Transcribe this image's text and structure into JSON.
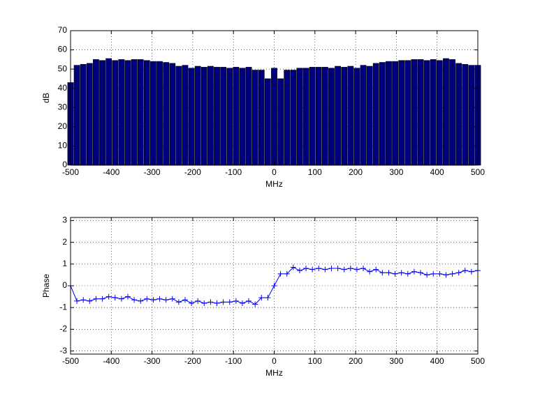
{
  "chart_data": [
    {
      "type": "bar",
      "xlabel": "MHz",
      "ylabel": "dB",
      "color": "#00007f",
      "edgecolor": "#000000",
      "grid": true,
      "x": [
        -500,
        -484.375,
        -468.75,
        -453.125,
        -437.5,
        -421.875,
        -406.25,
        -390.625,
        -375,
        -359.375,
        -343.75,
        -328.125,
        -312.5,
        -296.875,
        -281.25,
        -265.625,
        -250,
        -234.375,
        -218.75,
        -203.125,
        -187.5,
        -171.875,
        -156.25,
        -140.625,
        -125,
        -109.375,
        -93.75,
        -78.125,
        -62.5,
        -46.875,
        -31.25,
        -15.625,
        0,
        15.625,
        31.25,
        46.875,
        62.5,
        78.125,
        93.75,
        109.375,
        125,
        140.625,
        156.25,
        171.875,
        187.5,
        203.125,
        218.75,
        234.375,
        250,
        265.625,
        281.25,
        296.875,
        312.5,
        328.125,
        343.75,
        359.375,
        375,
        390.625,
        406.25,
        421.875,
        437.5,
        453.125,
        468.75,
        484.375,
        500
      ],
      "values": [
        43,
        52,
        52.5,
        53,
        55,
        54.5,
        55.5,
        54.5,
        55,
        54.5,
        55,
        55,
        54.5,
        54,
        54,
        53.5,
        53,
        51.5,
        52,
        50.5,
        51.5,
        51,
        51.5,
        51,
        51,
        50.5,
        51,
        50.5,
        51,
        49.5,
        49.5,
        45,
        50.5,
        45,
        49.5,
        49.5,
        50.5,
        50.5,
        51,
        51,
        51,
        50.5,
        51.5,
        51,
        51.5,
        50.5,
        52,
        51.5,
        53,
        53.5,
        54,
        54,
        54.5,
        54.5,
        55,
        55,
        54.5,
        55,
        54.5,
        55.5,
        55,
        53,
        52.5,
        52,
        52
      ],
      "xlim": [
        -500,
        500
      ],
      "xticks": [
        -500,
        -400,
        -300,
        -200,
        -100,
        0,
        100,
        200,
        300,
        400,
        500
      ],
      "ylim": [
        0,
        70
      ],
      "yticks": [
        0,
        10,
        20,
        30,
        40,
        50,
        60,
        70
      ]
    },
    {
      "type": "line",
      "xlabel": "MHz",
      "ylabel": "Phase",
      "color": "#0000ff",
      "marker": "+",
      "grid": true,
      "x": [
        -500,
        -484.375,
        -468.75,
        -453.125,
        -437.5,
        -421.875,
        -406.25,
        -390.625,
        -375,
        -359.375,
        -343.75,
        -328.125,
        -312.5,
        -296.875,
        -281.25,
        -265.625,
        -250,
        -234.375,
        -218.75,
        -203.125,
        -187.5,
        -171.875,
        -156.25,
        -140.625,
        -125,
        -109.375,
        -93.75,
        -78.125,
        -62.5,
        -46.875,
        -31.25,
        -15.625,
        0,
        15.625,
        31.25,
        46.875,
        62.5,
        78.125,
        93.75,
        109.375,
        125,
        140.625,
        156.25,
        171.875,
        187.5,
        203.125,
        218.75,
        234.375,
        250,
        265.625,
        281.25,
        296.875,
        312.5,
        328.125,
        343.75,
        359.375,
        375,
        390.625,
        406.25,
        421.875,
        437.5,
        453.125,
        468.75,
        484.375,
        500
      ],
      "values": [
        0,
        -0.7,
        -0.65,
        -0.7,
        -0.6,
        -0.6,
        -0.5,
        -0.55,
        -0.6,
        -0.5,
        -0.65,
        -0.7,
        -0.6,
        -0.65,
        -0.6,
        -0.65,
        -0.6,
        -0.75,
        -0.65,
        -0.8,
        -0.7,
        -0.8,
        -0.75,
        -0.8,
        -0.75,
        -0.75,
        -0.7,
        -0.8,
        -0.7,
        -0.85,
        -0.55,
        -0.55,
        0,
        0.55,
        0.55,
        0.85,
        0.7,
        0.8,
        0.75,
        0.8,
        0.75,
        0.8,
        0.8,
        0.75,
        0.8,
        0.75,
        0.8,
        0.65,
        0.75,
        0.6,
        0.6,
        0.55,
        0.6,
        0.55,
        0.65,
        0.6,
        0.5,
        0.55,
        0.55,
        0.5,
        0.55,
        0.6,
        0.7,
        0.65,
        0.7
      ],
      "xlim": [
        -500,
        500
      ],
      "xticks": [
        -500,
        -400,
        -300,
        -200,
        -100,
        0,
        100,
        200,
        300,
        400,
        500
      ],
      "ylim": [
        -3.1416,
        3.1416
      ],
      "yticks": [
        -3,
        -2,
        -1,
        0,
        1,
        2,
        3
      ]
    }
  ]
}
